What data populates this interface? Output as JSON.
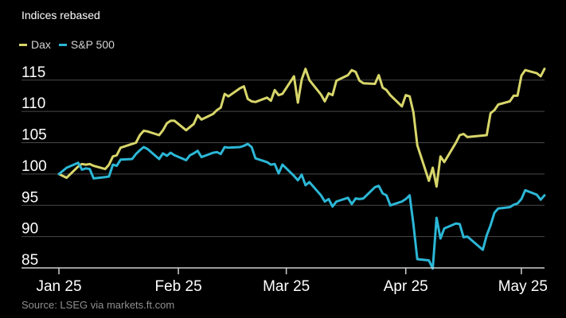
{
  "header": {
    "title": "Indices rebased"
  },
  "footer": {
    "source": "Source: LSEG via markets.ft.com"
  },
  "colors": {
    "dax": "#d8d66a",
    "sp500": "#2cb7d6",
    "grid": "#4a4a4a",
    "axis": "#d0d0d0"
  },
  "chart_data": {
    "type": "line",
    "title": "Indices rebased",
    "xlabel": "",
    "ylabel": "",
    "ylim": [
      85,
      117
    ],
    "yticks": [
      85,
      90,
      95,
      100,
      105,
      110,
      115
    ],
    "xlim": [
      "2025-01-01",
      "2025-05-02"
    ],
    "xticks": [
      {
        "date": "2025-01-01",
        "label": "Jan 25"
      },
      {
        "date": "2025-02-01",
        "label": "Feb 25"
      },
      {
        "date": "2025-03-01",
        "label": "Mar 25"
      },
      {
        "date": "2025-04-01",
        "label": "Apr 25"
      },
      {
        "date": "2025-05-01",
        "label": "May 25"
      }
    ],
    "grid": "horizontal",
    "legend_position": "top-left",
    "series": [
      {
        "name": "Dax",
        "color": "#d8d66a",
        "points": [
          [
            "2025-01-01",
            100.0
          ],
          [
            "2025-01-03",
            99.4
          ],
          [
            "2025-01-06",
            101.2
          ],
          [
            "2025-01-07",
            101.6
          ],
          [
            "2025-01-08",
            101.5
          ],
          [
            "2025-01-09",
            101.6
          ],
          [
            "2025-01-10",
            101.3
          ],
          [
            "2025-01-13",
            100.8
          ],
          [
            "2025-01-14",
            101.5
          ],
          [
            "2025-01-15",
            102.8
          ],
          [
            "2025-01-16",
            103.0
          ],
          [
            "2025-01-17",
            104.2
          ],
          [
            "2025-01-20",
            104.8
          ],
          [
            "2025-01-21",
            105.0
          ],
          [
            "2025-01-22",
            106.2
          ],
          [
            "2025-01-23",
            106.9
          ],
          [
            "2025-01-24",
            106.8
          ],
          [
            "2025-01-27",
            106.2
          ],
          [
            "2025-01-28",
            107.0
          ],
          [
            "2025-01-29",
            108.1
          ],
          [
            "2025-01-30",
            108.5
          ],
          [
            "2025-01-31",
            108.5
          ],
          [
            "2025-02-03",
            107.0
          ],
          [
            "2025-02-04",
            107.5
          ],
          [
            "2025-02-05",
            108.0
          ],
          [
            "2025-02-06",
            109.4
          ],
          [
            "2025-02-07",
            108.7
          ],
          [
            "2025-02-10",
            109.6
          ],
          [
            "2025-02-11",
            110.2
          ],
          [
            "2025-02-12",
            110.6
          ],
          [
            "2025-02-13",
            112.8
          ],
          [
            "2025-02-14",
            112.4
          ],
          [
            "2025-02-17",
            113.7
          ],
          [
            "2025-02-18",
            114.0
          ],
          [
            "2025-02-19",
            112.0
          ],
          [
            "2025-02-20",
            111.6
          ],
          [
            "2025-02-21",
            111.5
          ],
          [
            "2025-02-24",
            112.2
          ],
          [
            "2025-02-25",
            111.7
          ],
          [
            "2025-02-26",
            113.4
          ],
          [
            "2025-02-27",
            112.6
          ],
          [
            "2025-02-28",
            112.8
          ],
          [
            "2025-03-03",
            115.6
          ],
          [
            "2025-03-04",
            111.4
          ],
          [
            "2025-03-05",
            115.1
          ],
          [
            "2025-03-06",
            116.8
          ],
          [
            "2025-03-07",
            115.0
          ],
          [
            "2025-03-10",
            112.7
          ],
          [
            "2025-03-11",
            111.6
          ],
          [
            "2025-03-12",
            112.9
          ],
          [
            "2025-03-13",
            112.6
          ],
          [
            "2025-03-14",
            114.9
          ],
          [
            "2025-03-17",
            115.8
          ],
          [
            "2025-03-18",
            116.6
          ],
          [
            "2025-03-19",
            116.3
          ],
          [
            "2025-03-20",
            114.9
          ],
          [
            "2025-03-21",
            114.5
          ],
          [
            "2025-03-24",
            114.4
          ],
          [
            "2025-03-25",
            115.8
          ],
          [
            "2025-03-26",
            113.8
          ],
          [
            "2025-03-27",
            113.4
          ],
          [
            "2025-03-28",
            112.6
          ],
          [
            "2025-03-31",
            110.8
          ],
          [
            "2025-04-01",
            112.6
          ],
          [
            "2025-04-02",
            112.4
          ],
          [
            "2025-04-03",
            109.8
          ],
          [
            "2025-04-04",
            104.6
          ],
          [
            "2025-04-07",
            98.9
          ],
          [
            "2025-04-08",
            101.0
          ],
          [
            "2025-04-09",
            98.0
          ],
          [
            "2025-04-10",
            102.8
          ],
          [
            "2025-04-11",
            101.9
          ],
          [
            "2025-04-14",
            105.0
          ],
          [
            "2025-04-15",
            106.2
          ],
          [
            "2025-04-16",
            106.4
          ],
          [
            "2025-04-17",
            105.9
          ],
          [
            "2025-04-22",
            106.2
          ],
          [
            "2025-04-23",
            109.7
          ],
          [
            "2025-04-24",
            110.2
          ],
          [
            "2025-04-25",
            111.1
          ],
          [
            "2025-04-28",
            111.6
          ],
          [
            "2025-04-29",
            112.5
          ],
          [
            "2025-04-30",
            112.5
          ],
          [
            "2025-05-01",
            115.7
          ],
          [
            "2025-05-02",
            116.6
          ],
          [
            "2025-05-05",
            116.1
          ],
          [
            "2025-05-06",
            115.6
          ],
          [
            "2025-05-07",
            116.8
          ]
        ]
      },
      {
        "name": "S&P 500",
        "color": "#2cb7d6",
        "points": [
          [
            "2025-01-01",
            100.0
          ],
          [
            "2025-01-03",
            101.0
          ],
          [
            "2025-01-06",
            101.8
          ],
          [
            "2025-01-07",
            100.7
          ],
          [
            "2025-01-08",
            100.9
          ],
          [
            "2025-01-09",
            100.8
          ],
          [
            "2025-01-10",
            99.3
          ],
          [
            "2025-01-13",
            99.5
          ],
          [
            "2025-01-14",
            99.6
          ],
          [
            "2025-01-15",
            101.5
          ],
          [
            "2025-01-16",
            101.3
          ],
          [
            "2025-01-17",
            102.3
          ],
          [
            "2025-01-20",
            102.4
          ],
          [
            "2025-01-21",
            103.2
          ],
          [
            "2025-01-22",
            103.8
          ],
          [
            "2025-01-23",
            104.3
          ],
          [
            "2025-01-24",
            104.0
          ],
          [
            "2025-01-27",
            102.4
          ],
          [
            "2025-01-28",
            103.3
          ],
          [
            "2025-01-29",
            102.9
          ],
          [
            "2025-01-30",
            103.4
          ],
          [
            "2025-01-31",
            103.0
          ],
          [
            "2025-02-03",
            102.2
          ],
          [
            "2025-02-04",
            103.0
          ],
          [
            "2025-02-05",
            103.3
          ],
          [
            "2025-02-06",
            103.7
          ],
          [
            "2025-02-07",
            102.7
          ],
          [
            "2025-02-10",
            103.4
          ],
          [
            "2025-02-11",
            103.5
          ],
          [
            "2025-02-12",
            103.2
          ],
          [
            "2025-02-13",
            104.3
          ],
          [
            "2025-02-14",
            104.2
          ],
          [
            "2025-02-17",
            104.3
          ],
          [
            "2025-02-18",
            104.5
          ],
          [
            "2025-02-19",
            104.8
          ],
          [
            "2025-02-20",
            104.3
          ],
          [
            "2025-02-21",
            102.5
          ],
          [
            "2025-02-24",
            101.9
          ],
          [
            "2025-02-25",
            101.5
          ],
          [
            "2025-02-26",
            101.6
          ],
          [
            "2025-02-27",
            100.1
          ],
          [
            "2025-02-28",
            101.5
          ],
          [
            "2025-03-03",
            99.7
          ],
          [
            "2025-03-04",
            99.0
          ],
          [
            "2025-03-05",
            99.9
          ],
          [
            "2025-03-06",
            98.2
          ],
          [
            "2025-03-07",
            98.7
          ],
          [
            "2025-03-10",
            96.6
          ],
          [
            "2025-03-11",
            95.6
          ],
          [
            "2025-03-12",
            96.0
          ],
          [
            "2025-03-13",
            94.8
          ],
          [
            "2025-03-14",
            95.6
          ],
          [
            "2025-03-17",
            96.2
          ],
          [
            "2025-03-18",
            95.2
          ],
          [
            "2025-03-19",
            96.1
          ],
          [
            "2025-03-20",
            96.0
          ],
          [
            "2025-03-21",
            96.1
          ],
          [
            "2025-03-24",
            97.9
          ],
          [
            "2025-03-25",
            98.1
          ],
          [
            "2025-03-26",
            96.9
          ],
          [
            "2025-03-27",
            96.6
          ],
          [
            "2025-03-28",
            95.0
          ],
          [
            "2025-03-31",
            95.6
          ],
          [
            "2025-04-01",
            96.0
          ],
          [
            "2025-04-02",
            96.6
          ],
          [
            "2025-04-03",
            91.9
          ],
          [
            "2025-04-04",
            86.4
          ],
          [
            "2025-04-07",
            86.2
          ],
          [
            "2025-04-08",
            84.9
          ],
          [
            "2025-04-09",
            93.0
          ],
          [
            "2025-04-10",
            89.7
          ],
          [
            "2025-04-11",
            91.3
          ],
          [
            "2025-04-14",
            92.1
          ],
          [
            "2025-04-15",
            92.0
          ],
          [
            "2025-04-16",
            89.9
          ],
          [
            "2025-04-17",
            90.0
          ],
          [
            "2025-04-21",
            87.9
          ],
          [
            "2025-04-22",
            90.2
          ],
          [
            "2025-04-23",
            91.8
          ],
          [
            "2025-04-24",
            93.8
          ],
          [
            "2025-04-25",
            94.5
          ],
          [
            "2025-04-28",
            94.7
          ],
          [
            "2025-04-29",
            95.1
          ],
          [
            "2025-04-30",
            95.3
          ],
          [
            "2025-05-01",
            96.0
          ],
          [
            "2025-05-02",
            97.4
          ],
          [
            "2025-05-05",
            96.7
          ],
          [
            "2025-05-06",
            95.9
          ],
          [
            "2025-05-07",
            96.6
          ]
        ]
      }
    ]
  }
}
